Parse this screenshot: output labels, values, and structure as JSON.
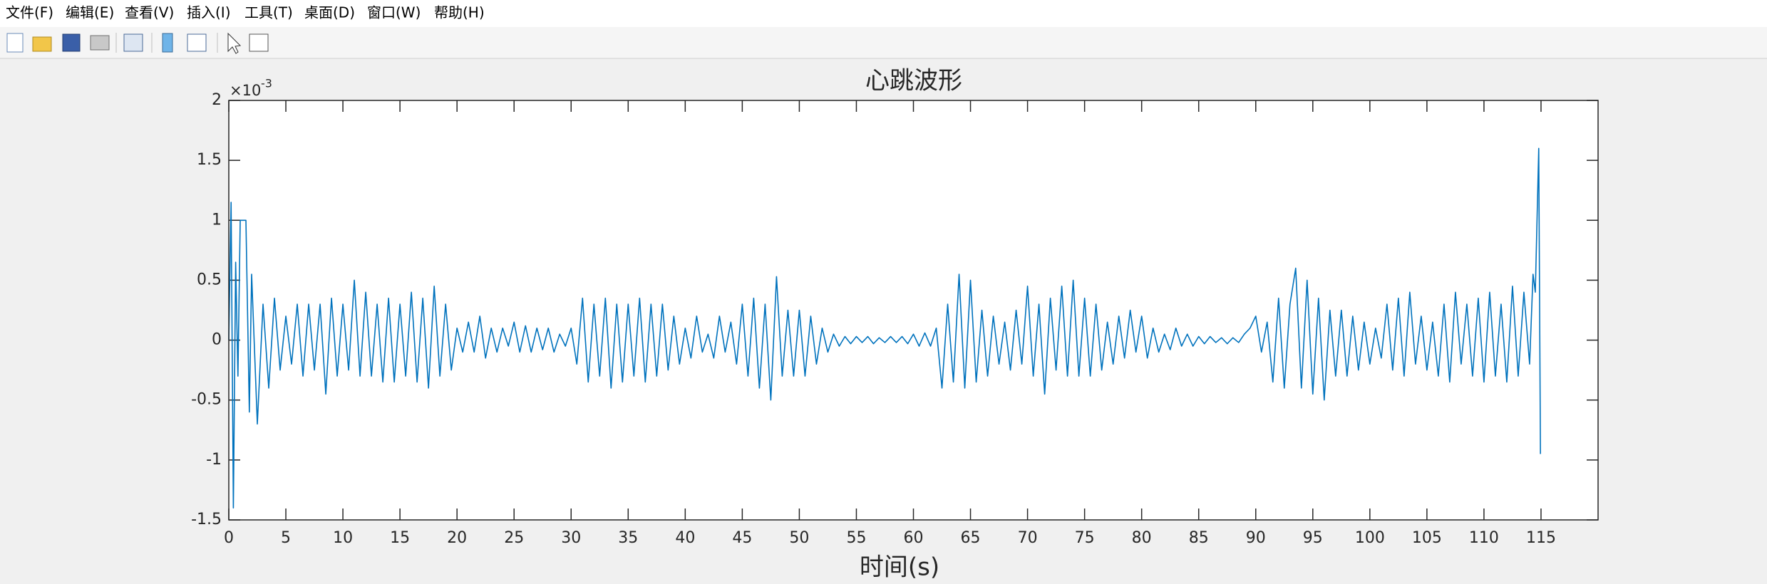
{
  "menu": [
    "文件(F)",
    "编辑(E)",
    "查看(V)",
    "插入(I)",
    "工具(T)",
    "桌面(D)",
    "窗口(W)",
    "帮助(H)"
  ],
  "chart_data": {
    "type": "line",
    "title": "心跳波形",
    "xlabel": "时间(s)",
    "y_scale_base": "×10",
    "y_scale_exponent": "-3",
    "xlim": [
      0,
      120
    ],
    "ylim": [
      -1.5,
      2
    ],
    "xticks": [
      0,
      5,
      10,
      15,
      20,
      25,
      30,
      35,
      40,
      45,
      50,
      55,
      60,
      65,
      70,
      75,
      80,
      85,
      90,
      95,
      100,
      105,
      110,
      115
    ],
    "yticks": [
      -1.5,
      -1,
      -0.5,
      0,
      0.5,
      1,
      1.5,
      2
    ],
    "series": [
      {
        "color": "#0072bd",
        "x": [
          0,
          0.2,
          0.4,
          0.6,
          0.8,
          1.0,
          1.5,
          1.8,
          2.0,
          2.5,
          3.0,
          3.5,
          4.0,
          4.5,
          5.0,
          5.5,
          6.0,
          6.5,
          7.0,
          7.5,
          8.0,
          8.5,
          9.0,
          9.5,
          10.0,
          10.5,
          11.0,
          11.5,
          12.0,
          12.5,
          13.0,
          13.5,
          14.0,
          14.5,
          15.0,
          15.5,
          16.0,
          16.5,
          17.0,
          17.5,
          18.0,
          18.5,
          19.0,
          19.5,
          20.0,
          20.5,
          21.0,
          21.5,
          22.0,
          22.5,
          23.0,
          23.5,
          24.0,
          24.5,
          25.0,
          25.5,
          26.0,
          26.5,
          27.0,
          27.5,
          28.0,
          28.5,
          29.0,
          29.5,
          30.0,
          30.5,
          31.0,
          31.5,
          32.0,
          32.5,
          33.0,
          33.5,
          34.0,
          34.5,
          35.0,
          35.5,
          36.0,
          36.5,
          37.0,
          37.5,
          38.0,
          38.5,
          39.0,
          39.5,
          40.0,
          40.5,
          41.0,
          41.5,
          42.0,
          42.5,
          43.0,
          43.5,
          44.0,
          44.5,
          45.0,
          45.5,
          46.0,
          46.5,
          47.0,
          47.5,
          48.0,
          48.5,
          49.0,
          49.5,
          50.0,
          50.5,
          51.0,
          51.5,
          52.0,
          52.5,
          53.0,
          53.5,
          54.0,
          54.5,
          55.0,
          55.5,
          56.0,
          56.5,
          57.0,
          57.5,
          58.0,
          58.5,
          59.0,
          59.5,
          60.0,
          60.5,
          61.0,
          61.5,
          62.0,
          62.5,
          63.0,
          63.5,
          64.0,
          64.5,
          65.0,
          65.5,
          66.0,
          66.5,
          67.0,
          67.5,
          68.0,
          68.5,
          69.0,
          69.5,
          70.0,
          70.5,
          71.0,
          71.5,
          72.0,
          72.5,
          73.0,
          73.5,
          74.0,
          74.5,
          75.0,
          75.5,
          76.0,
          76.5,
          77.0,
          77.5,
          78.0,
          78.5,
          79.0,
          79.5,
          80.0,
          80.5,
          81.0,
          81.5,
          82.0,
          82.5,
          83.0,
          83.5,
          84.0,
          84.5,
          85.0,
          85.5,
          86.0,
          86.5,
          87.0,
          87.5,
          88.0,
          88.5,
          89.0,
          89.5,
          90.0,
          90.5,
          91.0,
          91.5,
          92.0,
          92.5,
          93.0,
          93.5,
          94.0,
          94.5,
          95.0,
          95.5,
          96.0,
          96.5,
          97.0,
          97.5,
          98.0,
          98.5,
          99.0,
          99.5,
          100.0,
          100.5,
          101.0,
          101.5,
          102.0,
          102.5,
          103.0,
          103.5,
          104.0,
          104.5,
          105.0,
          105.5,
          106.0,
          106.5,
          107.0,
          107.5,
          108.0,
          108.5,
          109.0,
          109.5,
          110.0,
          110.5,
          111.0,
          111.5,
          112.0,
          112.5,
          113.0,
          113.5,
          114.0,
          114.3,
          114.5,
          114.8,
          114.95
        ],
        "values": [
          0,
          1.15,
          -1.4,
          0.65,
          -0.3,
          1.0,
          1.0,
          -0.6,
          0.55,
          -0.7,
          0.3,
          -0.4,
          0.35,
          -0.25,
          0.2,
          -0.2,
          0.3,
          -0.3,
          0.3,
          -0.25,
          0.3,
          -0.45,
          0.35,
          -0.3,
          0.3,
          -0.25,
          0.5,
          -0.3,
          0.4,
          -0.3,
          0.3,
          -0.35,
          0.35,
          -0.35,
          0.3,
          -0.3,
          0.4,
          -0.35,
          0.35,
          -0.4,
          0.45,
          -0.3,
          0.3,
          -0.25,
          0.1,
          -0.1,
          0.15,
          -0.1,
          0.2,
          -0.15,
          0.1,
          -0.1,
          0.1,
          -0.05,
          0.15,
          -0.1,
          0.12,
          -0.1,
          0.1,
          -0.08,
          0.1,
          -0.1,
          0.05,
          -0.05,
          0.1,
          -0.2,
          0.35,
          -0.35,
          0.3,
          -0.3,
          0.35,
          -0.4,
          0.3,
          -0.35,
          0.3,
          -0.3,
          0.35,
          -0.35,
          0.3,
          -0.3,
          0.3,
          -0.25,
          0.2,
          -0.2,
          0.1,
          -0.15,
          0.2,
          -0.1,
          0.05,
          -0.15,
          0.2,
          -0.1,
          0.15,
          -0.2,
          0.3,
          -0.3,
          0.35,
          -0.4,
          0.3,
          -0.5,
          0.53,
          -0.3,
          0.25,
          -0.3,
          0.25,
          -0.3,
          0.2,
          -0.2,
          0.1,
          -0.1,
          0.05,
          -0.05,
          0.03,
          -0.03,
          0.03,
          -0.02,
          0.03,
          -0.03,
          0.02,
          -0.02,
          0.03,
          -0.02,
          0.03,
          -0.03,
          0.05,
          -0.05,
          0.06,
          -0.05,
          0.1,
          -0.4,
          0.3,
          -0.35,
          0.55,
          -0.4,
          0.5,
          -0.35,
          0.25,
          -0.3,
          0.2,
          -0.2,
          0.15,
          -0.25,
          0.25,
          -0.2,
          0.45,
          -0.3,
          0.3,
          -0.45,
          0.35,
          -0.25,
          0.45,
          -0.3,
          0.5,
          -0.3,
          0.35,
          -0.3,
          0.3,
          -0.25,
          0.15,
          -0.2,
          0.2,
          -0.15,
          0.25,
          -0.1,
          0.2,
          -0.15,
          0.1,
          -0.1,
          0.05,
          -0.08,
          0.1,
          -0.05,
          0.05,
          -0.05,
          0.03,
          -0.03,
          0.03,
          -0.02,
          0.02,
          -0.03,
          0.02,
          -0.02,
          0.05,
          0.1,
          0.2,
          -0.1,
          0.15,
          -0.35,
          0.35,
          -0.4,
          0.3,
          0.6,
          -0.4,
          0.5,
          -0.45,
          0.35,
          -0.5,
          0.25,
          -0.3,
          0.25,
          -0.3,
          0.2,
          -0.25,
          0.15,
          -0.2,
          0.1,
          -0.15,
          0.3,
          -0.25,
          0.35,
          -0.3,
          0.4,
          -0.2,
          0.2,
          -0.25,
          0.15,
          -0.3,
          0.3,
          -0.35,
          0.4,
          -0.2,
          0.3,
          -0.3,
          0.35,
          -0.35,
          0.4,
          -0.3,
          0.3,
          -0.35,
          0.45,
          -0.3,
          0.4,
          -0.2,
          0.55,
          0.4,
          1.6,
          -0.95
        ]
      }
    ]
  }
}
